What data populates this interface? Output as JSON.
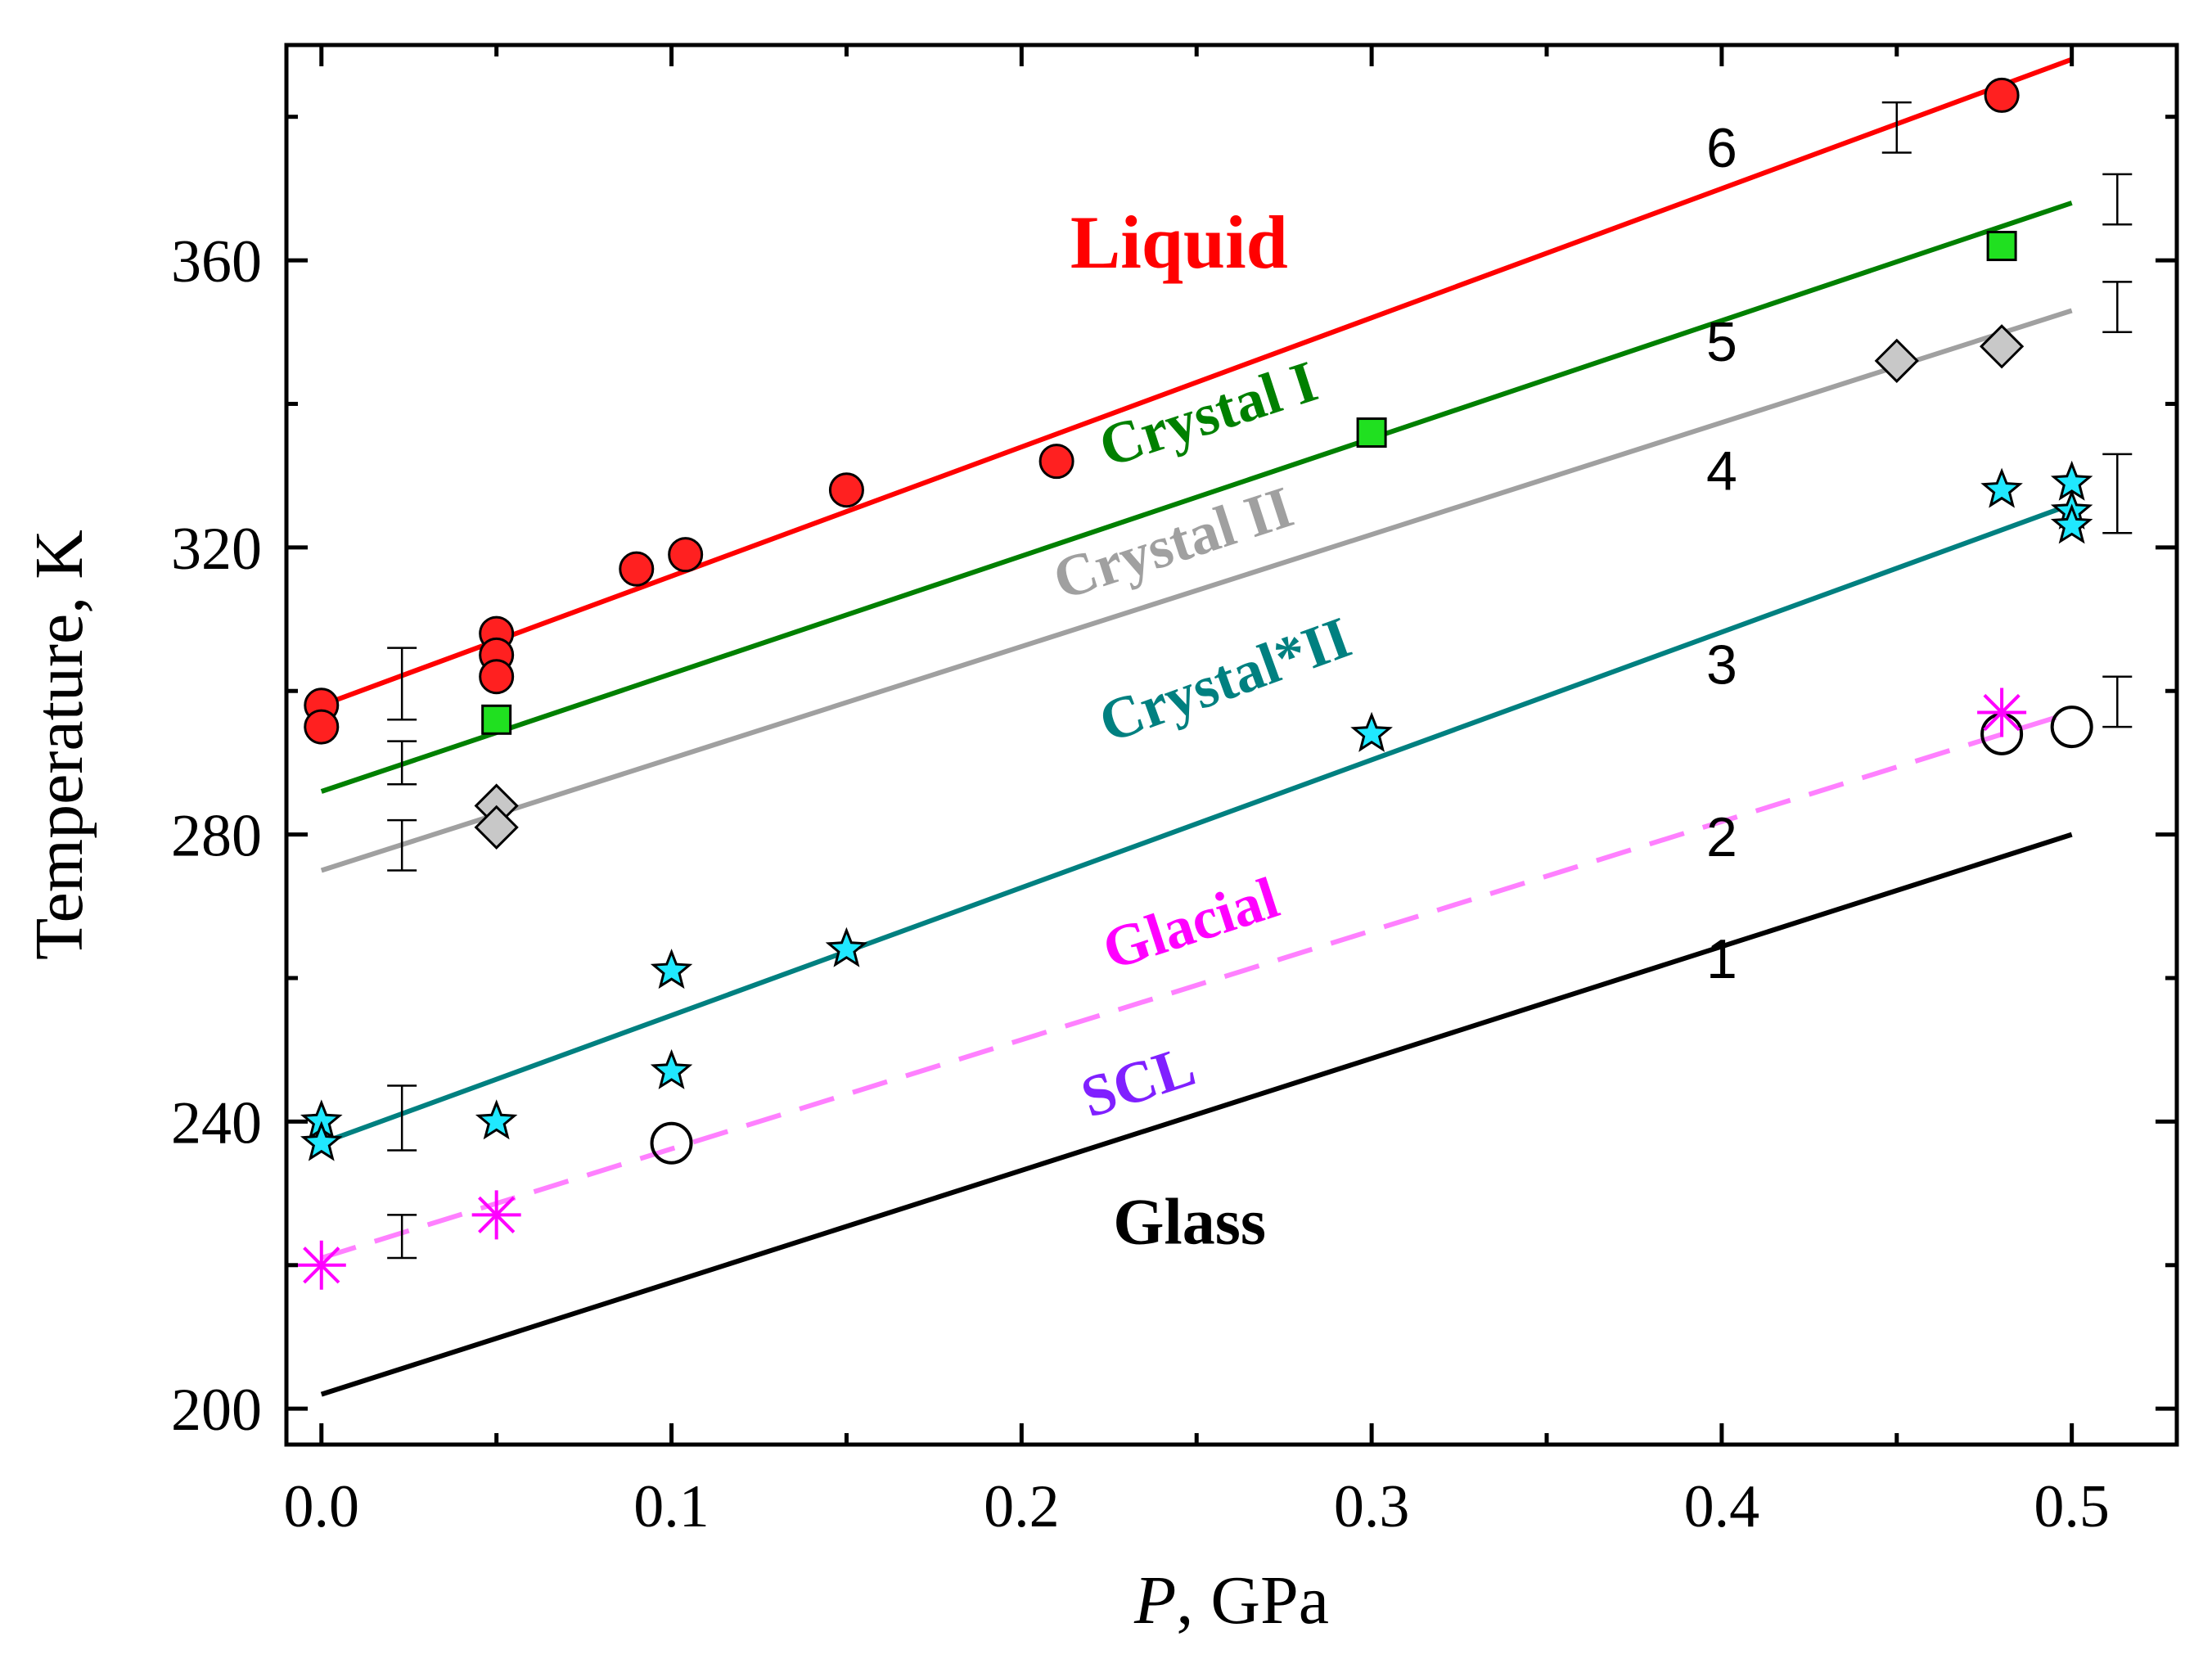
{
  "chart_data": {
    "type": "scatter",
    "title": "",
    "xlabel_italic": "P",
    "xlabel_rest": ", GPa",
    "ylabel": "Temperature, K",
    "xlim": [
      -0.01,
      0.53
    ],
    "ylim": [
      195,
      390
    ],
    "x_ticks": [
      0.0,
      0.1,
      0.2,
      0.3,
      0.4,
      0.5
    ],
    "x_tick_labels": [
      "0.0",
      "0.1",
      "0.2",
      "0.3",
      "0.4",
      "0.5"
    ],
    "y_ticks": [
      200,
      240,
      280,
      320,
      360
    ],
    "y_tick_labels": [
      "200",
      "240",
      "280",
      "320",
      "360"
    ],
    "grid": false,
    "lines": [
      {
        "id": "1",
        "name": "Glass boundary",
        "color": "#000000",
        "dash": false,
        "x": [
          0.0,
          0.5
        ],
        "y": [
          202,
          280
        ]
      },
      {
        "id": "2",
        "name": "SCL/Glacial boundary",
        "color": "#ff80ff",
        "dash": true,
        "x": [
          0.0,
          0.5
        ],
        "y": [
          221,
          297
        ]
      },
      {
        "id": "3",
        "name": "Crystal*II boundary",
        "color": "#008080",
        "dash": false,
        "x": [
          0.0,
          0.5
        ],
        "y": [
          237,
          326
        ]
      },
      {
        "id": "4",
        "name": "Crystal II boundary",
        "color": "#a0a0a0",
        "dash": false,
        "x": [
          0.0,
          0.5
        ],
        "y": [
          275,
          353
        ]
      },
      {
        "id": "5",
        "name": "Crystal I boundary",
        "color": "#008000",
        "dash": false,
        "x": [
          0.0,
          0.5
        ],
        "y": [
          286,
          368
        ]
      },
      {
        "id": "6",
        "name": "Liquid boundary",
        "color": "#ff0000",
        "dash": false,
        "x": [
          0.0,
          0.5
        ],
        "y": [
          298,
          388
        ]
      }
    ],
    "line_number_labels": [
      {
        "text": "1",
        "x": 0.4,
        "y": 260
      },
      {
        "text": "2",
        "x": 0.4,
        "y": 277
      },
      {
        "text": "3",
        "x": 0.4,
        "y": 301
      },
      {
        "text": "4",
        "x": 0.4,
        "y": 328
      },
      {
        "text": "5",
        "x": 0.4,
        "y": 346
      },
      {
        "text": "6",
        "x": 0.4,
        "y": 373
      }
    ],
    "series": [
      {
        "name": "Liquid (red circles)",
        "marker": "circle",
        "fill": "#ff2020",
        "x": [
          0.0,
          0.0,
          0.05,
          0.05,
          0.05,
          0.09,
          0.104,
          0.15,
          0.21,
          0.48
        ],
        "y": [
          298,
          295,
          308,
          305,
          302,
          317,
          319,
          328,
          332,
          383
        ]
      },
      {
        "name": "Crystal I (green squares)",
        "marker": "square",
        "fill": "#20e020",
        "x": [
          0.05,
          0.3,
          0.48
        ],
        "y": [
          296,
          336,
          362
        ]
      },
      {
        "name": "Crystal II (grey diamonds)",
        "marker": "diamond",
        "fill": "#c8c8c8",
        "x": [
          0.05,
          0.05,
          0.45,
          0.48
        ],
        "y": [
          284,
          281,
          346,
          348
        ]
      },
      {
        "name": "Crystal*II (cyan stars)",
        "marker": "star",
        "fill": "#20e8ff",
        "x": [
          0.0,
          0.0,
          0.05,
          0.1,
          0.1,
          0.15,
          0.3,
          0.48,
          0.5,
          0.5,
          0.5
        ],
        "y": [
          240,
          237,
          240,
          261,
          247,
          264,
          294,
          328,
          329,
          325,
          323
        ]
      },
      {
        "name": "Glacial (open circles)",
        "marker": "open-circle",
        "fill": "none",
        "x": [
          0.1,
          0.48,
          0.5
        ],
        "y": [
          237,
          294,
          295
        ]
      },
      {
        "name": "SCL (magenta asterisks)",
        "marker": "asterisk",
        "fill": "#ff00ff",
        "x": [
          0.0,
          0.05,
          0.48
        ],
        "y": [
          220,
          227,
          297
        ]
      }
    ],
    "error_bars": [
      {
        "x": 0.023,
        "y_low": 221,
        "y_high": 227
      },
      {
        "x": 0.023,
        "y_low": 236,
        "y_high": 245
      },
      {
        "x": 0.023,
        "y_low": 275,
        "y_high": 282
      },
      {
        "x": 0.023,
        "y_low": 287,
        "y_high": 293
      },
      {
        "x": 0.023,
        "y_low": 296,
        "y_high": 306
      },
      {
        "x": 0.45,
        "y_low": 375,
        "y_high": 382
      },
      {
        "x": 0.513,
        "y_low": 365,
        "y_high": 372
      },
      {
        "x": 0.513,
        "y_low": 350,
        "y_high": 357
      },
      {
        "x": 0.513,
        "y_low": 322,
        "y_high": 333
      },
      {
        "x": 0.513,
        "y_low": 295,
        "y_high": 302
      }
    ],
    "region_labels": [
      {
        "text": "Liquid",
        "color": "#ff0000",
        "x": 0.245,
        "y": 359,
        "rotate": 0,
        "size": 92
      },
      {
        "text": "Crystal I",
        "color": "#008000",
        "x": 0.255,
        "y": 336,
        "rotate": -18,
        "size": 72
      },
      {
        "text": "Crystal II",
        "color": "#a0a0a0",
        "x": 0.245,
        "y": 318,
        "rotate": -18,
        "size": 72
      },
      {
        "text": "Crystal*II",
        "color": "#008080",
        "x": 0.26,
        "y": 299,
        "rotate": -20,
        "size": 72
      },
      {
        "text": "Glacial",
        "color": "#ff00ff",
        "x": 0.25,
        "y": 265,
        "rotate": -18,
        "size": 72
      },
      {
        "text": "SCL",
        "color": "#8020ff",
        "x": 0.235,
        "y": 243,
        "rotate": -18,
        "size": 72
      },
      {
        "text": "Glass",
        "color": "#000000",
        "x": 0.248,
        "y": 223,
        "rotate": 0,
        "size": 80
      }
    ]
  }
}
